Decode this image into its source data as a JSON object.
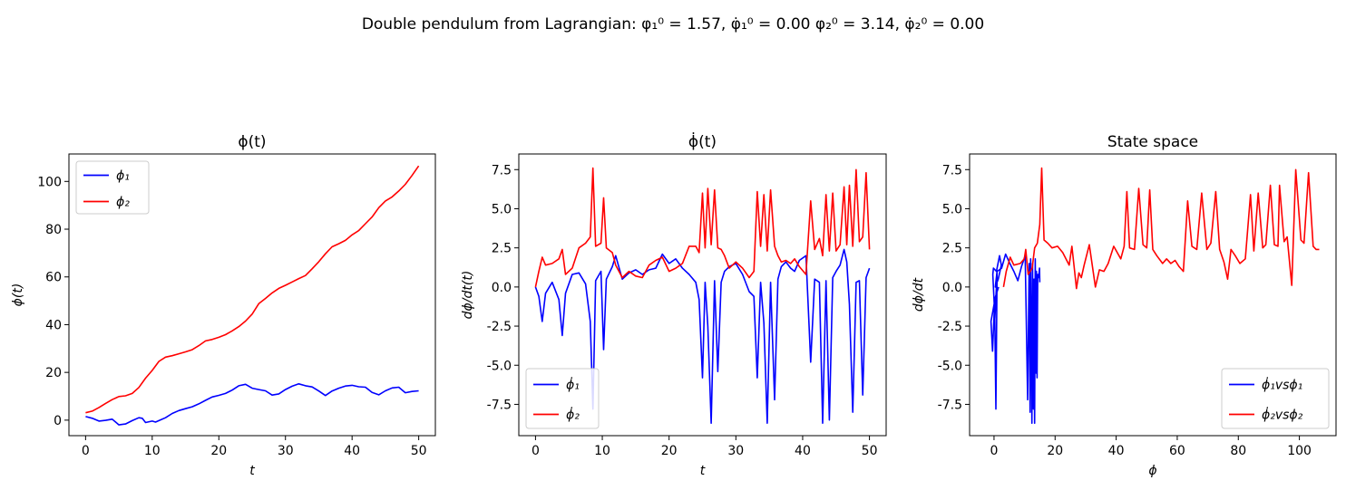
{
  "suptitle": "Double pendulum from Lagrangian:   φ₁⁰ = 1.57,  φ̇₁⁰ = 0.00 φ₂⁰ = 3.14,  φ̇₂⁰ = 0.00",
  "colors": {
    "blue": "#0000ff",
    "red": "#ff0000",
    "axes": "#000000"
  },
  "chart_data": [
    {
      "type": "line",
      "title": "ϕ(t)",
      "xlabel": "t",
      "ylabel": "ϕ(t)",
      "xlim": [
        -2.5,
        52.5
      ],
      "ylim": [
        -6.5,
        111.5
      ],
      "xticks": [
        0,
        10,
        20,
        30,
        40,
        50
      ],
      "yticks": [
        0,
        20,
        40,
        60,
        80,
        100
      ],
      "legend_position": "upper-left",
      "series": [
        {
          "name": "ϕ₁",
          "color": "blue",
          "x": [
            0,
            1,
            2,
            3,
            4,
            5,
            6,
            7,
            8,
            8.5,
            9,
            10,
            10.5,
            11,
            12,
            13,
            14,
            15,
            16,
            17,
            18,
            19,
            20,
            21,
            22,
            23,
            24,
            25,
            26,
            27,
            28,
            29,
            30,
            31,
            32,
            33,
            34,
            35,
            36,
            37,
            38,
            39,
            40,
            41,
            42,
            43,
            44,
            45,
            46,
            47,
            48,
            49,
            50
          ],
          "y": [
            1.5,
            0.8,
            -0.4,
            -0.1,
            0.4,
            -2.0,
            -1.6,
            -0.2,
            1.0,
            0.8,
            -1.0,
            -0.4,
            -0.8,
            -0.2,
            1.0,
            2.8,
            4.0,
            4.8,
            5.6,
            6.8,
            8.3,
            9.7,
            10.4,
            11.2,
            12.6,
            14.4,
            15.0,
            13.4,
            12.8,
            12.3,
            10.5,
            11.0,
            12.8,
            14.2,
            15.2,
            14.4,
            13.9,
            12.2,
            10.3,
            12.2,
            13.4,
            14.3,
            14.6,
            14.0,
            13.8,
            11.6,
            10.6,
            12.3,
            13.5,
            13.8,
            11.5,
            12.0,
            12.3
          ]
        },
        {
          "name": "ϕ₂",
          "color": "red",
          "x": [
            0,
            1,
            2,
            3,
            4,
            5,
            6,
            7,
            8,
            9,
            10,
            11,
            12,
            13,
            14,
            15,
            16,
            17,
            18,
            19,
            20,
            21,
            22,
            23,
            24,
            25,
            26,
            27,
            28,
            29,
            30,
            31,
            32,
            33,
            34,
            35,
            36,
            37,
            38,
            39,
            40,
            41,
            42,
            43,
            44,
            45,
            46,
            47,
            48,
            49,
            50
          ],
          "y": [
            3.1,
            3.8,
            5.3,
            7.0,
            8.6,
            9.9,
            10.2,
            11.2,
            13.7,
            17.6,
            20.8,
            24.6,
            26.4,
            27.0,
            27.8,
            28.6,
            29.5,
            31.2,
            33.2,
            33.8,
            34.7,
            35.8,
            37.4,
            39.2,
            41.5,
            44.4,
            48.8,
            51.0,
            53.3,
            55.2,
            56.5,
            57.9,
            59.3,
            60.6,
            63.4,
            66.4,
            69.7,
            72.6,
            73.9,
            75.3,
            77.6,
            79.4,
            82.3,
            85.1,
            89.0,
            91.8,
            93.5,
            96.0,
            98.8,
            102.5,
            106.5
          ]
        }
      ]
    },
    {
      "type": "line",
      "title": "ϕ̇(t)",
      "xlabel": "t",
      "ylabel": "dϕ/dt(t)",
      "xlim": [
        -2.5,
        52.5
      ],
      "ylim": [
        -9.5,
        8.5
      ],
      "xticks": [
        0,
        10,
        20,
        30,
        40,
        50
      ],
      "yticks": [
        -7.5,
        -5.0,
        -2.5,
        0.0,
        2.5,
        5.0,
        7.5
      ],
      "legend_position": "lower-left",
      "series": [
        {
          "name": "ϕ̇₁",
          "color": "blue",
          "x": [
            0,
            0.5,
            1.0,
            1.5,
            2.5,
            3.5,
            4.0,
            4.5,
            5.5,
            6.5,
            7.5,
            8.2,
            8.6,
            9.0,
            9.8,
            10.2,
            10.6,
            11.5,
            12.0,
            13.0,
            14.0,
            15.0,
            16.0,
            17.0,
            18.0,
            19.0,
            20.0,
            21.0,
            22.0,
            23.0,
            24.0,
            24.5,
            25.0,
            25.4,
            25.8,
            26.3,
            26.8,
            27.3,
            27.8,
            28.3,
            29.0,
            30.0,
            31.0,
            32.0,
            32.7,
            33.2,
            33.7,
            34.2,
            34.7,
            35.2,
            35.8,
            36.3,
            36.8,
            37.5,
            38.2,
            38.8,
            39.5,
            40.5,
            41.2,
            41.8,
            42.5,
            43.0,
            43.5,
            44.0,
            44.5,
            45.0,
            45.6,
            46.2,
            46.6,
            47.0,
            47.5,
            48.0,
            48.5,
            49.0,
            49.5,
            50.0
          ],
          "y": [
            0.0,
            -0.6,
            -2.2,
            -0.4,
            0.3,
            -0.8,
            -3.1,
            -0.4,
            0.8,
            0.9,
            0.2,
            -2.2,
            -7.8,
            0.4,
            1.0,
            -4.0,
            0.5,
            1.3,
            2.0,
            0.5,
            0.9,
            1.1,
            0.8,
            1.1,
            1.2,
            2.1,
            1.5,
            1.8,
            1.2,
            0.8,
            0.3,
            -0.8,
            -5.8,
            0.3,
            -2.5,
            -8.7,
            0.4,
            -5.4,
            0.3,
            1.0,
            1.3,
            1.5,
            0.8,
            -0.3,
            -0.6,
            -5.8,
            0.3,
            -2.3,
            -8.7,
            0.3,
            -7.2,
            0.5,
            1.3,
            1.6,
            1.2,
            1.0,
            1.7,
            2.0,
            -4.8,
            0.5,
            0.3,
            -8.7,
            0.4,
            -8.5,
            0.6,
            1.0,
            1.4,
            2.4,
            1.6,
            -1.1,
            -8.0,
            0.3,
            0.4,
            -6.9,
            0.6,
            1.2
          ]
        },
        {
          "name": "ϕ̇₂",
          "color": "red",
          "x": [
            0,
            0.5,
            1.0,
            1.5,
            2.5,
            3.5,
            4.0,
            4.5,
            5.5,
            6.5,
            7.5,
            8.2,
            8.6,
            9.0,
            9.8,
            10.2,
            10.6,
            11.5,
            12.0,
            13.0,
            14.0,
            15.0,
            16.0,
            17.0,
            18.0,
            19.0,
            20.0,
            21.0,
            22.0,
            23.0,
            24.0,
            24.5,
            25.0,
            25.4,
            25.8,
            26.3,
            26.8,
            27.3,
            27.8,
            28.3,
            29.0,
            30.0,
            31.0,
            32.0,
            32.7,
            33.2,
            33.7,
            34.2,
            34.7,
            35.2,
            35.8,
            36.3,
            36.8,
            37.5,
            38.2,
            38.8,
            39.5,
            40.5,
            41.2,
            41.8,
            42.5,
            43.0,
            43.5,
            44.0,
            44.5,
            45.0,
            45.6,
            46.2,
            46.6,
            47.0,
            47.5,
            48.0,
            48.5,
            49.0,
            49.5,
            50.0
          ],
          "y": [
            0.0,
            1.0,
            1.9,
            1.4,
            1.5,
            1.8,
            2.4,
            0.8,
            1.2,
            2.5,
            2.8,
            3.2,
            7.6,
            2.6,
            2.8,
            5.7,
            2.5,
            2.2,
            1.4,
            0.6,
            1.0,
            0.7,
            0.6,
            1.4,
            1.7,
            1.9,
            1.0,
            1.2,
            1.5,
            2.6,
            2.6,
            2.2,
            6.0,
            2.5,
            6.3,
            2.7,
            6.2,
            2.5,
            2.4,
            2.0,
            1.2,
            1.6,
            1.2,
            0.6,
            1.0,
            6.1,
            2.6,
            5.9,
            2.3,
            6.2,
            2.6,
            2.0,
            1.6,
            1.7,
            1.5,
            1.8,
            1.3,
            0.8,
            5.5,
            2.4,
            3.1,
            2.0,
            5.9,
            2.3,
            6.0,
            2.3,
            2.7,
            6.4,
            2.7,
            6.5,
            2.6,
            7.5,
            2.9,
            3.2,
            7.3,
            2.4
          ]
        }
      ]
    },
    {
      "type": "line",
      "title": "State space",
      "xlabel": "ϕ",
      "ylabel": "dϕ/dt",
      "xlim": [
        -8,
        112
      ],
      "ylim": [
        -9.5,
        8.5
      ],
      "xticks": [
        0,
        20,
        40,
        60,
        80,
        100
      ],
      "yticks": [
        -7.5,
        -5.0,
        -2.5,
        0.0,
        2.5,
        5.0,
        7.5
      ],
      "legend_position": "lower-right",
      "series": [
        {
          "name": "ϕ̇₁vsϕ₁",
          "color": "blue",
          "x": [
            1.5,
            0.5,
            -1.0,
            -0.5,
            0.2,
            0.6,
            1.0,
            0.3,
            -0.4,
            -0.2,
            0.8,
            1.8,
            2.4,
            1.4,
            0.4,
            1.0,
            2.5,
            3.8,
            5.2,
            6.5,
            7.8,
            9.0,
            10.2,
            11.0,
            11.5,
            11.8,
            12.0,
            12.2,
            12.4,
            12.6,
            12.9,
            13.1,
            13.3,
            13.5,
            13.7,
            13.9,
            14.1,
            14.3,
            14.6,
            14.9,
            15.0
          ],
          "y": [
            0.0,
            -0.6,
            -2.2,
            -4.1,
            -1.0,
            -7.8,
            0.9,
            -2.0,
            0.8,
            1.2,
            1.0,
            2.0,
            1.4,
            0.5,
            0.0,
            1.0,
            1.2,
            2.1,
            1.5,
            1.0,
            0.4,
            1.3,
            2.0,
            -7.2,
            1.5,
            -8.0,
            1.8,
            -3.0,
            -8.7,
            1.5,
            -7.8,
            0.5,
            -8.7,
            1.8,
            -5.5,
            1.0,
            -5.8,
            0.8,
            0.6,
            1.2,
            0.3
          ]
        },
        {
          "name": "ϕ̇₂vsϕ₂",
          "color": "red",
          "x": [
            3.1,
            4.0,
            5.3,
            6.5,
            8.6,
            9.9,
            10.4,
            11.2,
            12.5,
            13.3,
            14.2,
            15.0,
            15.6,
            16.4,
            17.6,
            19.0,
            20.8,
            22.5,
            24.6,
            25.5,
            26.4,
            27.0,
            27.8,
            28.6,
            29.5,
            31.2,
            33.2,
            34.5,
            36.0,
            37.4,
            39.2,
            41.5,
            42.6,
            43.5,
            44.4,
            46.0,
            47.4,
            48.8,
            50.0,
            51.0,
            52.0,
            53.3,
            55.2,
            56.5,
            57.9,
            59.3,
            60.6,
            62.0,
            63.4,
            64.8,
            66.4,
            68.0,
            69.7,
            71.0,
            72.6,
            73.9,
            75.3,
            76.5,
            77.6,
            79.0,
            80.5,
            82.3,
            84.0,
            85.1,
            86.5,
            88.0,
            89.0,
            90.5,
            91.8,
            93.0,
            93.5,
            95.0,
            96.0,
            97.5,
            98.8,
            100.5,
            101.5,
            103.0,
            104.5,
            105.5,
            106.5
          ],
          "y": [
            0.0,
            1.0,
            1.9,
            1.4,
            1.5,
            1.8,
            2.4,
            0.8,
            1.2,
            2.5,
            2.8,
            4.0,
            7.6,
            3.0,
            2.8,
            2.5,
            2.6,
            2.2,
            1.4,
            2.6,
            1.0,
            -0.1,
            0.9,
            0.6,
            1.4,
            2.7,
            0.0,
            1.1,
            1.0,
            1.5,
            2.6,
            1.8,
            2.6,
            6.1,
            2.5,
            2.4,
            6.3,
            2.7,
            2.5,
            6.2,
            2.4,
            2.0,
            1.5,
            1.8,
            1.5,
            1.7,
            1.3,
            1.0,
            5.5,
            2.6,
            2.4,
            6.0,
            2.4,
            2.8,
            6.1,
            2.4,
            1.6,
            0.5,
            2.4,
            2.0,
            1.5,
            1.8,
            5.9,
            2.3,
            6.0,
            2.5,
            2.7,
            6.5,
            2.7,
            2.6,
            6.5,
            2.9,
            3.2,
            0.1,
            7.5,
            3.0,
            2.8,
            7.3,
            2.6,
            2.4,
            2.4
          ]
        }
      ]
    }
  ]
}
